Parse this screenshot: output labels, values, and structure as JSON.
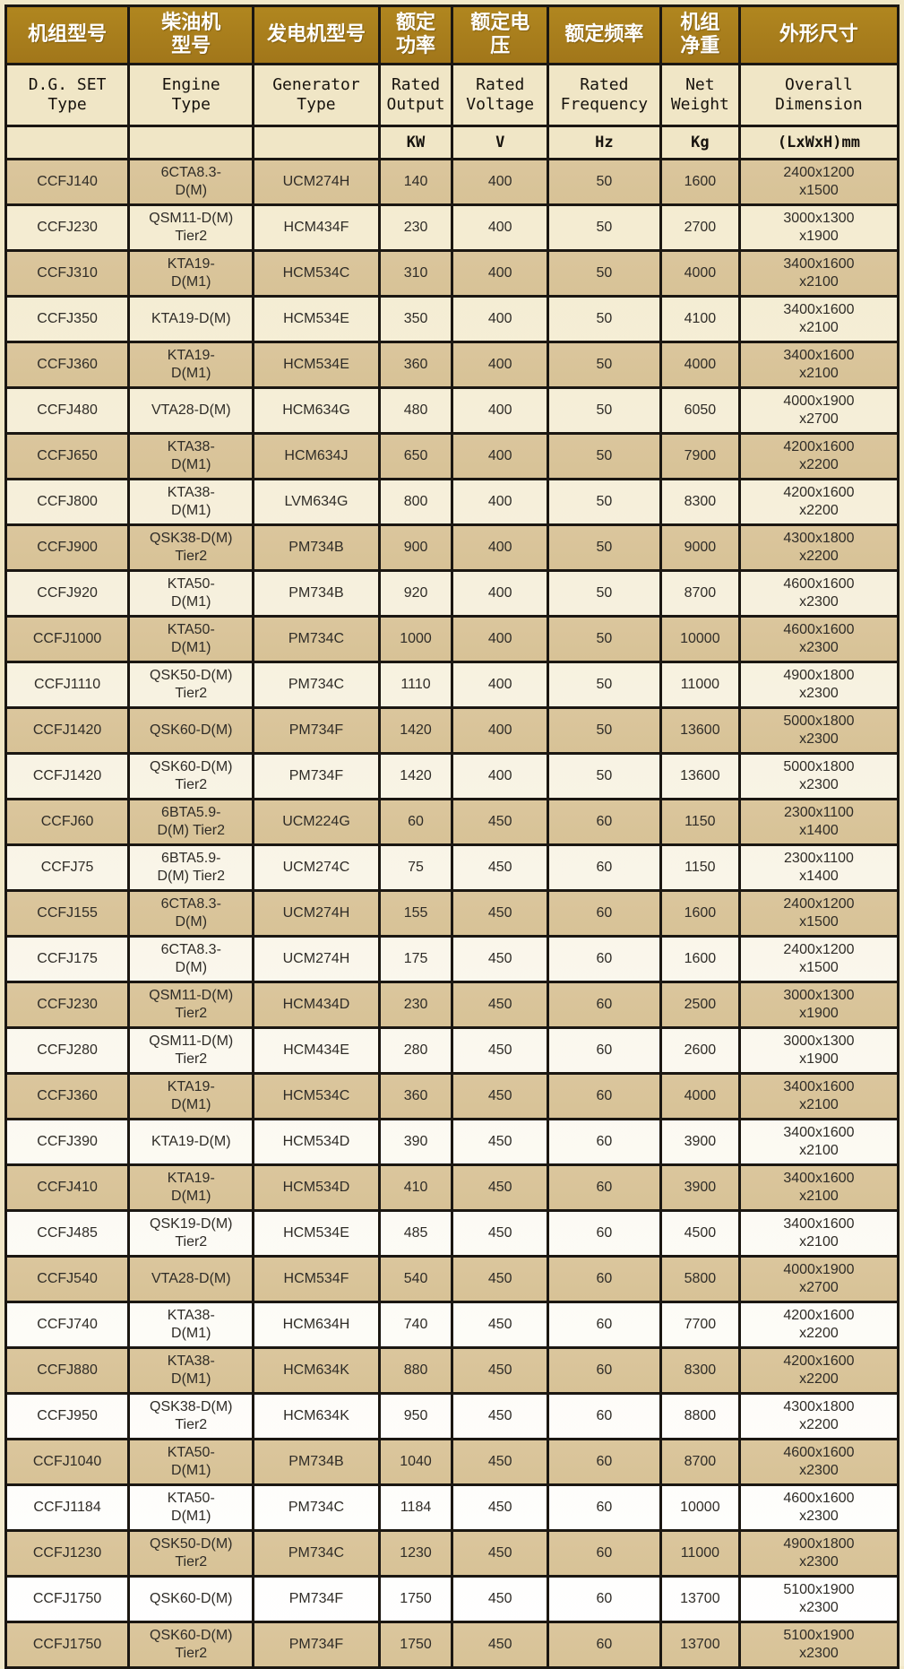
{
  "table": {
    "columns": [
      {
        "zh": "机组型号",
        "en": "D.G. SET\nType",
        "unit": ""
      },
      {
        "zh": "柴油机\n型号",
        "en": "Engine\nType",
        "unit": ""
      },
      {
        "zh": "发电机型号",
        "en": "Generator\nType",
        "unit": ""
      },
      {
        "zh": "额定\n功率",
        "en": "Rated\nOutput",
        "unit": "KW"
      },
      {
        "zh": "额定电\n压",
        "en": "Rated\nVoltage",
        "unit": "V"
      },
      {
        "zh": "额定频率",
        "en": "Rated\nFrequency",
        "unit": "Hz"
      },
      {
        "zh": "机组\n净重",
        "en": "Net\nWeight",
        "unit": "Kg"
      },
      {
        "zh": "外形尺寸",
        "en": "Overall\nDimension",
        "unit": "(LxWxH)mm"
      }
    ],
    "rows": [
      [
        "CCFJ140",
        "6CTA8.3-\nD(M)",
        "UCM274H",
        "140",
        "400",
        "50",
        "1600",
        "2400x1200\nx1500"
      ],
      [
        "CCFJ230",
        "QSM11-D(M)\nTier2",
        "HCM434F",
        "230",
        "400",
        "50",
        "2700",
        "3000x1300\nx1900"
      ],
      [
        "CCFJ310",
        "KTA19-\nD(M1)",
        "HCM534C",
        "310",
        "400",
        "50",
        "4000",
        "3400x1600\nx2100"
      ],
      [
        "CCFJ350",
        "KTA19-D(M)",
        "HCM534E",
        "350",
        "400",
        "50",
        "4100",
        "3400x1600\nx2100"
      ],
      [
        "CCFJ360",
        "KTA19-\nD(M1)",
        "HCM534E",
        "360",
        "400",
        "50",
        "4000",
        "3400x1600\nx2100"
      ],
      [
        "CCFJ480",
        "VTA28-D(M)",
        "HCM634G",
        "480",
        "400",
        "50",
        "6050",
        "4000x1900\nx2700"
      ],
      [
        "CCFJ650",
        "KTA38-\nD(M1)",
        "HCM634J",
        "650",
        "400",
        "50",
        "7900",
        "4200x1600\nx2200"
      ],
      [
        "CCFJ800",
        "KTA38-\nD(M1)",
        "LVM634G",
        "800",
        "400",
        "50",
        "8300",
        "4200x1600\nx2200"
      ],
      [
        "CCFJ900",
        "QSK38-D(M)\nTier2",
        "PM734B",
        "900",
        "400",
        "50",
        "9000",
        "4300x1800\nx2200"
      ],
      [
        "CCFJ920",
        "KTA50-\nD(M1)",
        "PM734B",
        "920",
        "400",
        "50",
        "8700",
        "4600x1600\nx2300"
      ],
      [
        "CCFJ1000",
        "KTA50-\nD(M1)",
        "PM734C",
        "1000",
        "400",
        "50",
        "10000",
        "4600x1600\nx2300"
      ],
      [
        "CCFJ1110",
        "QSK50-D(M)\nTier2",
        "PM734C",
        "1110",
        "400",
        "50",
        "11000",
        "4900x1800\nx2300"
      ],
      [
        "CCFJ1420",
        "QSK60-D(M)",
        "PM734F",
        "1420",
        "400",
        "50",
        "13600",
        "5000x1800\nx2300"
      ],
      [
        "CCFJ1420",
        "QSK60-D(M)\nTier2",
        "PM734F",
        "1420",
        "400",
        "50",
        "13600",
        "5000x1800\nx2300"
      ],
      [
        "CCFJ60",
        "6BTA5.9-\nD(M) Tier2",
        "UCM224G",
        "60",
        "450",
        "60",
        "1150",
        "2300x1100\nx1400"
      ],
      [
        "CCFJ75",
        "6BTA5.9-\nD(M) Tier2",
        "UCM274C",
        "75",
        "450",
        "60",
        "1150",
        "2300x1100\nx1400"
      ],
      [
        "CCFJ155",
        "6CTA8.3-\nD(M)",
        "UCM274H",
        "155",
        "450",
        "60",
        "1600",
        "2400x1200\nx1500"
      ],
      [
        "CCFJ175",
        "6CTA8.3-\nD(M)",
        "UCM274H",
        "175",
        "450",
        "60",
        "1600",
        "2400x1200\nx1500"
      ],
      [
        "CCFJ230",
        "QSM11-D(M)\nTier2",
        "HCM434D",
        "230",
        "450",
        "60",
        "2500",
        "3000x1300\nx1900"
      ],
      [
        "CCFJ280",
        "QSM11-D(M)\nTier2",
        "HCM434E",
        "280",
        "450",
        "60",
        "2600",
        "3000x1300\nx1900"
      ],
      [
        "CCFJ360",
        "KTA19-\nD(M1)",
        "HCM534C",
        "360",
        "450",
        "60",
        "4000",
        "3400x1600\nx2100"
      ],
      [
        "CCFJ390",
        "KTA19-D(M)",
        "HCM534D",
        "390",
        "450",
        "60",
        "3900",
        "3400x1600\nx2100"
      ],
      [
        "CCFJ410",
        "KTA19-\nD(M1)",
        "HCM534D",
        "410",
        "450",
        "60",
        "3900",
        "3400x1600\nx2100"
      ],
      [
        "CCFJ485",
        "QSK19-D(M)\nTier2",
        "HCM534E",
        "485",
        "450",
        "60",
        "4500",
        "3400x1600\nx2100"
      ],
      [
        "CCFJ540",
        "VTA28-D(M)",
        "HCM534F",
        "540",
        "450",
        "60",
        "5800",
        "4000x1900\nx2700"
      ],
      [
        "CCFJ740",
        "KTA38-\nD(M1)",
        "HCM634H",
        "740",
        "450",
        "60",
        "7700",
        "4200x1600\nx2200"
      ],
      [
        "CCFJ880",
        "KTA38-\nD(M1)",
        "HCM634K",
        "880",
        "450",
        "60",
        "8300",
        "4200x1600\nx2200"
      ],
      [
        "CCFJ950",
        "QSK38-D(M)\nTier2",
        "HCM634K",
        "950",
        "450",
        "60",
        "8800",
        "4300x1800\nx2200"
      ],
      [
        "CCFJ1040",
        "KTA50-\nD(M1)",
        "PM734B",
        "1040",
        "450",
        "60",
        "8700",
        "4600x1600\nx2300"
      ],
      [
        "CCFJ1184",
        "KTA50-\nD(M1)",
        "PM734C",
        "1184",
        "450",
        "60",
        "10000",
        "4600x1600\nx2300"
      ],
      [
        "CCFJ1230",
        "QSK50-D(M)\nTier2",
        "PM734C",
        "1230",
        "450",
        "60",
        "11000",
        "4900x1800\nx2300"
      ],
      [
        "CCFJ1750",
        "QSK60-D(M)",
        "PM734F",
        "1750",
        "450",
        "60",
        "13700",
        "5100x1900\nx2300"
      ],
      [
        "CCFJ1750",
        "QSK60-D(M)\nTier2",
        "PM734F",
        "1750",
        "450",
        "60",
        "13700",
        "5100x1900\nx2300"
      ]
    ]
  },
  "colors": {
    "header_gold": "#a87c1e",
    "header_cream": "#f0e6c6",
    "row_dark_tan": "#d9c499",
    "row_light": "#f6f0dc",
    "border": "#1b1712",
    "page_background": "#f0e6c4"
  }
}
